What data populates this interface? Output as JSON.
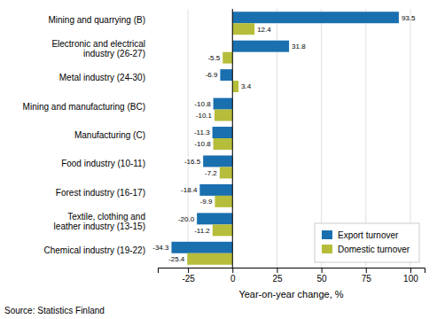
{
  "chart_data": {
    "type": "bar",
    "orientation": "horizontal",
    "categories": [
      "Chemical industry (19-22)",
      "Textile, clothing and\nleather industry (13-15)",
      "Forest industry (16-17)",
      "Food industry (10-11)",
      "Manufacturing (C)",
      "Mining and manufacturing (BC)",
      "Metal industry (24-30)",
      "Electronic and electrical\nindustry (26-27)",
      "Mining and quarrying (B)"
    ],
    "series": [
      {
        "name": "Export turnover",
        "color": "#1a6faf",
        "values": [
          -34.3,
          -20.0,
          -18.4,
          -16.5,
          -11.3,
          -10.8,
          -6.9,
          31.8,
          93.5
        ],
        "value_labels": [
          "-34.3",
          "-20.0",
          "-18.4",
          "-16.5",
          "-11.3",
          "-10.8",
          "-6.9",
          "31.8",
          "93.5"
        ]
      },
      {
        "name": "Domestic turnover",
        "color": "#b5bd3a",
        "values": [
          -25.4,
          -11.2,
          -9.9,
          -7.2,
          -10.8,
          -10.1,
          3.4,
          -5.5,
          12.4
        ],
        "value_labels": [
          "-25.4",
          "-11.2",
          "-9.9",
          "-7.2",
          "-10.8",
          "-10.1",
          "3.4",
          "-5.5",
          "12.4"
        ]
      }
    ],
    "xlim": [
      -42,
      108
    ],
    "xticks": [
      -25,
      0,
      25,
      50,
      75,
      100
    ],
    "x_label": "Year-on-year change, %",
    "source": "Source: Statistics Finland",
    "grid": true,
    "legend": "lower right",
    "data_labels": true
  }
}
